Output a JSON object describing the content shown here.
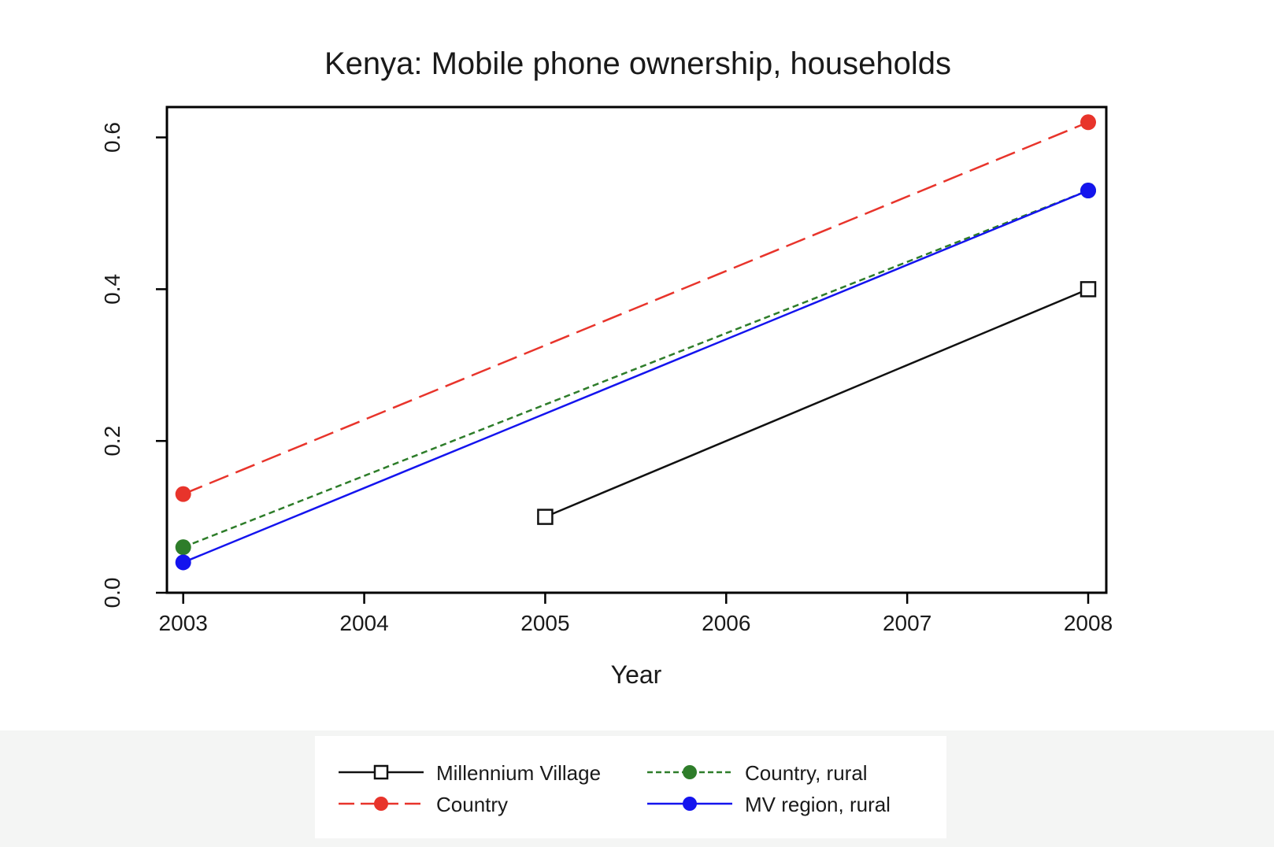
{
  "chart_data": {
    "type": "line",
    "title": "Kenya: Mobile phone ownership, households",
    "xlabel": "Year",
    "ylabel": "",
    "xlim": [
      2002.91,
      2008.1
    ],
    "ylim": [
      0.0,
      0.64
    ],
    "x_ticks": [
      2003,
      2004,
      2005,
      2006,
      2007,
      2008
    ],
    "y_ticks": [
      0.0,
      0.2,
      0.4,
      0.6
    ],
    "x_tick_labels": [
      "2003",
      "2004",
      "2005",
      "2006",
      "2007",
      "2008"
    ],
    "y_tick_labels": [
      "0.0",
      "0.2",
      "0.4",
      "0.6"
    ],
    "grid": false,
    "legend_position": "bottom",
    "series": [
      {
        "name": "Millennium Village",
        "color": "#111111",
        "marker": "open-square",
        "dash": "solid",
        "x": [
          2005,
          2008
        ],
        "y": [
          0.1,
          0.4
        ]
      },
      {
        "name": "Country",
        "color": "#e8342b",
        "marker": "filled-circle",
        "dash": "long-dash",
        "x": [
          2003,
          2008
        ],
        "y": [
          0.13,
          0.62
        ]
      },
      {
        "name": "Country, rural",
        "color": "#2e7d2a",
        "marker": "filled-circle",
        "dash": "short-dash",
        "x": [
          2003,
          2008
        ],
        "y": [
          0.06,
          0.53
        ]
      },
      {
        "name": "MV region, rural",
        "color": "#1414ee",
        "marker": "filled-circle",
        "dash": "solid",
        "x": [
          2003,
          2008
        ],
        "y": [
          0.04,
          0.53
        ]
      }
    ]
  }
}
